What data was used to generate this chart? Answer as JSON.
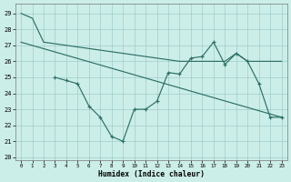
{
  "xlabel": "Humidex (Indice chaleur)",
  "xlim": [
    -0.5,
    23.5
  ],
  "ylim": [
    19.8,
    29.6
  ],
  "yticks": [
    20,
    21,
    22,
    23,
    24,
    25,
    26,
    27,
    28,
    29
  ],
  "xticks": [
    0,
    1,
    2,
    3,
    4,
    5,
    6,
    7,
    8,
    9,
    10,
    11,
    12,
    13,
    14,
    15,
    16,
    17,
    18,
    19,
    20,
    21,
    22,
    23
  ],
  "bg_color": "#cceee8",
  "line_color": "#2d7068",
  "line1": {
    "x": [
      0,
      1,
      2,
      3,
      4,
      5,
      6,
      7,
      8,
      9,
      10,
      11,
      12,
      13,
      14,
      15,
      16,
      17,
      18,
      19,
      20,
      21,
      22,
      23
    ],
    "y": [
      29.0,
      28.7,
      27.2,
      27.1,
      27.0,
      26.9,
      26.8,
      26.7,
      26.6,
      26.5,
      26.4,
      26.3,
      26.2,
      26.1,
      26.0,
      26.0,
      26.0,
      26.0,
      26.0,
      26.5,
      26.0,
      26.0,
      26.0,
      26.0
    ]
  },
  "line2": {
    "x": [
      3,
      4,
      5,
      6,
      7,
      8,
      9,
      10,
      11,
      12,
      13,
      14,
      15,
      16,
      17,
      18,
      19,
      20,
      21,
      22,
      23
    ],
    "y": [
      25.0,
      24.8,
      24.6,
      23.2,
      22.5,
      21.3,
      21.0,
      23.0,
      23.0,
      23.5,
      25.3,
      25.2,
      26.2,
      26.3,
      27.2,
      25.8,
      26.5,
      26.0,
      24.6,
      22.5,
      22.5
    ]
  },
  "line3": {
    "x": [
      0,
      23
    ],
    "y": [
      27.2,
      22.5
    ]
  }
}
